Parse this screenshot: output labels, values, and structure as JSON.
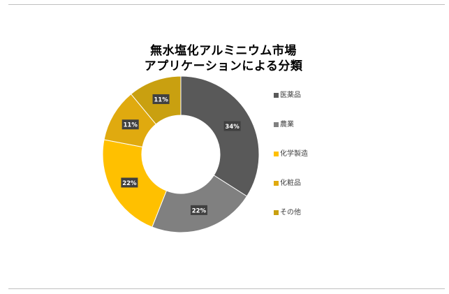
{
  "chart_data": {
    "type": "pie",
    "variant": "doughnut",
    "title_lines": [
      "無水塩化アルミニウム市場",
      "アプリケーションによる分類"
    ],
    "categories": [
      "医薬品",
      "農業",
      "化学製造",
      "化粧品",
      "その他"
    ],
    "values": [
      34,
      22,
      22,
      11,
      11
    ],
    "data_labels": [
      "34%",
      "22%",
      "22%",
      "11%",
      "11%"
    ],
    "colors": [
      "#595959",
      "#808080",
      "#ffc000",
      "#e0aa0f",
      "#c9a010"
    ],
    "legend_position": "right"
  }
}
